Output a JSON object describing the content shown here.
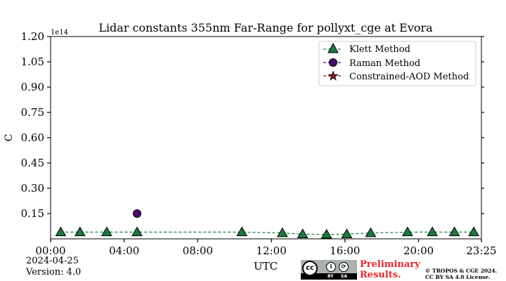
{
  "chart_data": {
    "type": "scatter",
    "title": "Lidar constants 355nm Far-Range for pollyxt_cge at Evora",
    "xlabel": "UTC",
    "ylabel": "C",
    "y_multiplier_label": "1e14",
    "xlim_hours": [
      0,
      23.4167
    ],
    "ylim": [
      0,
      1.2
    ],
    "x_ticks": [
      {
        "label": "00:00",
        "hour": 0
      },
      {
        "label": "04:00",
        "hour": 4
      },
      {
        "label": "08:00",
        "hour": 8
      },
      {
        "label": "12:00",
        "hour": 12
      },
      {
        "label": "16:00",
        "hour": 16
      },
      {
        "label": "20:00",
        "hour": 20
      },
      {
        "label": "23:25",
        "hour": 23.4167
      }
    ],
    "y_ticks": [
      {
        "label": "0.15",
        "value": 0.15
      },
      {
        "label": "0.30",
        "value": 0.3
      },
      {
        "label": "0.45",
        "value": 0.45
      },
      {
        "label": "0.60",
        "value": 0.6
      },
      {
        "label": "0.75",
        "value": 0.75
      },
      {
        "label": "0.90",
        "value": 0.9
      },
      {
        "label": "1.05",
        "value": 1.05
      },
      {
        "label": "1.20",
        "value": 1.2
      }
    ],
    "legend_position": "top-right",
    "series": [
      {
        "name": "Klett Method",
        "marker": "triangle",
        "color": "#1a7a3a",
        "line": "dashed",
        "points": [
          {
            "x": 0.55,
            "y": 0.04
          },
          {
            "x": 1.6,
            "y": 0.04
          },
          {
            "x": 3.05,
            "y": 0.04
          },
          {
            "x": 4.7,
            "y": 0.04
          },
          {
            "x": 10.4,
            "y": 0.04
          },
          {
            "x": 12.6,
            "y": 0.035
          },
          {
            "x": 13.7,
            "y": 0.028
          },
          {
            "x": 15.0,
            "y": 0.026
          },
          {
            "x": 16.1,
            "y": 0.028
          },
          {
            "x": 17.4,
            "y": 0.035
          },
          {
            "x": 19.4,
            "y": 0.04
          },
          {
            "x": 20.75,
            "y": 0.04
          },
          {
            "x": 21.95,
            "y": 0.04
          },
          {
            "x": 23.0,
            "y": 0.04
          }
        ]
      },
      {
        "name": "Raman Method",
        "marker": "circle",
        "color": "#4b0a6e",
        "line": "dashed",
        "points": [
          {
            "x": 4.7,
            "y": 0.15
          }
        ]
      },
      {
        "name": "Constrained-AOD Method",
        "marker": "star",
        "color": "#8a1a1a",
        "line": "dashed",
        "points": []
      }
    ]
  },
  "footer": {
    "date": "2024-04-25",
    "version": "Version: 4.0",
    "preliminary_line1": "Preliminary",
    "preliminary_line2": "Results.",
    "copyright_line1": "© TROPOS & CGE 2024.",
    "copyright_line2": "CC BY SA 4.0 License.",
    "cc_badge": {
      "cc": "cc",
      "by": "BY",
      "sa": "SA"
    }
  }
}
